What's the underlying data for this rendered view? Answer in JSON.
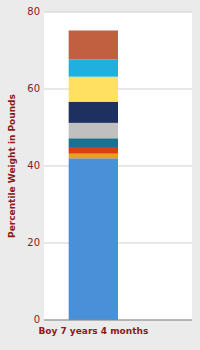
{
  "chart_data": {
    "type": "bar",
    "stacked": true,
    "categories": [
      "Boy 7 years 4 months"
    ],
    "series": [
      {
        "color": "#4A90D9",
        "values": [
          42
        ]
      },
      {
        "color": "#E8A020",
        "values": [
          1.2
        ]
      },
      {
        "color": "#D94010",
        "values": [
          1.5
        ]
      },
      {
        "color": "#1A7090",
        "values": [
          2.5
        ]
      },
      {
        "color": "#C0C0C0",
        "values": [
          4.0
        ]
      },
      {
        "color": "#1E3060",
        "values": [
          5.5
        ]
      },
      {
        "color": "#FFE060",
        "values": [
          6.5
        ]
      },
      {
        "color": "#20B0E0",
        "values": [
          4.5
        ]
      },
      {
        "color": "#C06040",
        "values": [
          7.5
        ]
      }
    ],
    "ylabel": "Percentile Weight in Pounds",
    "ylim": [
      0,
      80
    ],
    "yticks": [
      0,
      20,
      40,
      60,
      80
    ],
    "grid": true
  }
}
